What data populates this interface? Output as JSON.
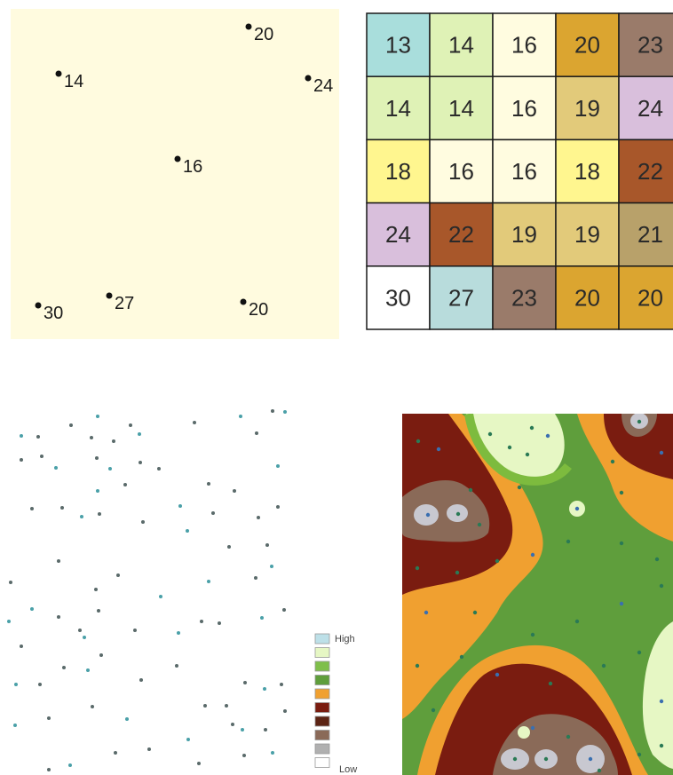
{
  "sample_points": {
    "background": "#fffbdf",
    "points": [
      {
        "value": "20"
      },
      {
        "value": "14"
      },
      {
        "value": "24"
      },
      {
        "value": "16"
      },
      {
        "value": "27"
      },
      {
        "value": "30"
      },
      {
        "value": "20"
      }
    ]
  },
  "interpolated_grid": {
    "rows": [
      [
        {
          "v": "13",
          "c": "#a9dedc"
        },
        {
          "v": "14",
          "c": "#dff2b6"
        },
        {
          "v": "16",
          "c": "#fffce0"
        },
        {
          "v": "20",
          "c": "#dba530"
        },
        {
          "v": "23",
          "c": "#9a7b6a"
        }
      ],
      [
        {
          "v": "14",
          "c": "#dff2b6"
        },
        {
          "v": "14",
          "c": "#dff2b6"
        },
        {
          "v": "16",
          "c": "#fffce0"
        },
        {
          "v": "19",
          "c": "#e2ca7a"
        },
        {
          "v": "24",
          "c": "#d9bfdc"
        }
      ],
      [
        {
          "v": "18",
          "c": "#fff68f"
        },
        {
          "v": "16",
          "c": "#fffce0"
        },
        {
          "v": "16",
          "c": "#fffce0"
        },
        {
          "v": "18",
          "c": "#fff68f"
        },
        {
          "v": "22",
          "c": "#a8572a"
        }
      ],
      [
        {
          "v": "24",
          "c": "#d9bfdc"
        },
        {
          "v": "22",
          "c": "#a8572a"
        },
        {
          "v": "19",
          "c": "#e2ca7a"
        },
        {
          "v": "19",
          "c": "#e2ca7a"
        },
        {
          "v": "21",
          "c": "#b8a16a"
        }
      ],
      [
        {
          "v": "30",
          "c": "#ffffff"
        },
        {
          "v": "27",
          "c": "#b8dcdc"
        },
        {
          "v": "23",
          "c": "#9a7b6a"
        },
        {
          "v": "20",
          "c": "#dba530"
        },
        {
          "v": "20",
          "c": "#dba530"
        }
      ]
    ]
  },
  "legend": {
    "high_label": "High",
    "low_label": "Low",
    "colors": [
      "#bde0e8",
      "#e6f7c4",
      "#7fbf4a",
      "#5f9e3c",
      "#f0a030",
      "#7a1c10",
      "#5c2414",
      "#8a6a58",
      "#b0b0b0",
      "#ffffff"
    ]
  },
  "surface_colors": {
    "light_green": "#e6f7c4",
    "green": "#7dbb3e",
    "olive": "#5f9e3c",
    "orange": "#f0a030",
    "dark_red": "#7a1c10",
    "brown": "#8a6a58",
    "grey": "#c8c8d0"
  }
}
